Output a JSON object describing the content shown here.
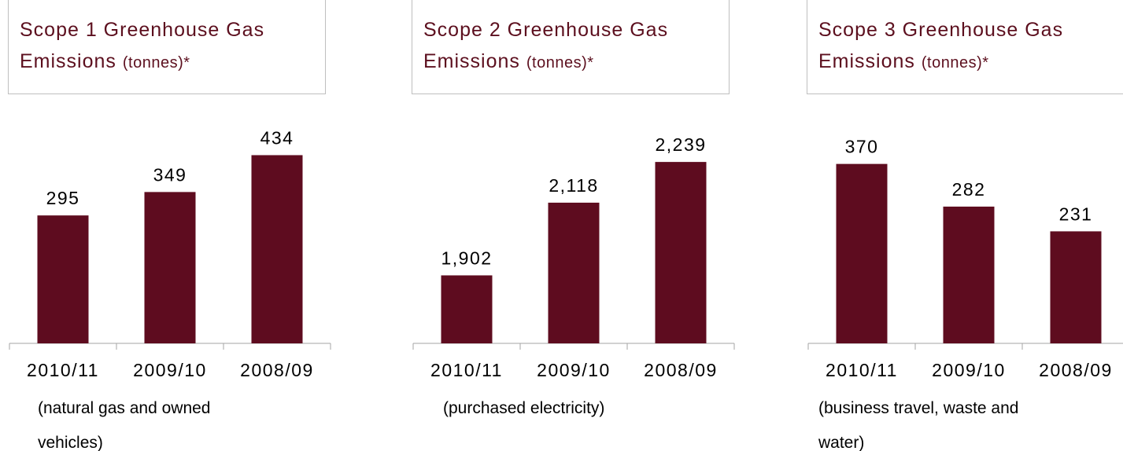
{
  "chart_data": [
    {
      "type": "bar",
      "title": "Scope 1 Greenhouse Gas Emissions",
      "subtitle": "(tonnes)*",
      "categories": [
        "2010/11",
        "2009/10",
        "2008/09"
      ],
      "values": [
        295,
        349,
        434
      ],
      "color": "#5e0c1f",
      "ylim": [
        0,
        520
      ],
      "annotation": "(natural gas and owned vehicles)"
    },
    {
      "type": "bar",
      "title": "Scope 2 Greenhouse Gas Emissions",
      "subtitle": "(tonnes)*",
      "categories": [
        "2010/11",
        "2009/10",
        "2008/09"
      ],
      "values": [
        1902,
        2118,
        2239
      ],
      "value_labels": [
        "1,902",
        "2,118",
        "2,239"
      ],
      "color": "#5e0c1f",
      "ylim": [
        1700,
        2370
      ],
      "annotation": "(purchased electricity)"
    },
    {
      "type": "bar",
      "title": "Scope 3 Greenhouse Gas Emissions",
      "subtitle": "(tonnes)*",
      "categories": [
        "2010/11",
        "2009/10",
        "2008/09"
      ],
      "values": [
        370,
        282,
        231
      ],
      "color": "#5e0c1f",
      "ylim": [
        0,
        465
      ],
      "annotation": "(business travel, waste and water)"
    }
  ]
}
